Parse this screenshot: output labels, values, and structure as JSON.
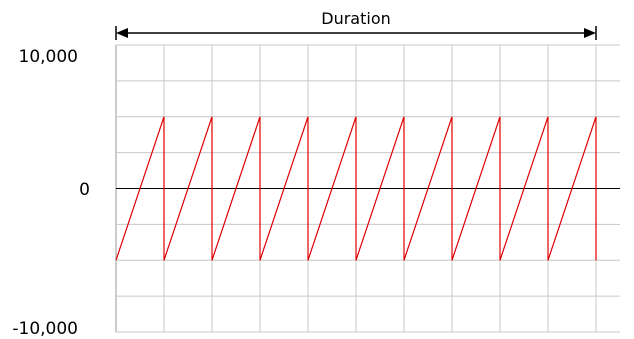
{
  "chart_data": {
    "type": "line",
    "title": "",
    "xlabel": "",
    "ylabel": "",
    "annotation": "Duration",
    "y_ticks": [
      {
        "value": 10000,
        "label": "10,000"
      },
      {
        "value": 0,
        "label": "0"
      },
      {
        "value": -10000,
        "label": "-10,000"
      }
    ],
    "ylim": [
      -10000,
      10000
    ],
    "xlim": [
      0,
      10
    ],
    "grid": true,
    "x_grid_step": 1,
    "y_grid_step": 2500,
    "series": [
      {
        "color": "#e00000",
        "waveform": "sawtooth",
        "amplitude_min": -5000,
        "amplitude_max": 5000,
        "cycles": 10,
        "period": 1
      }
    ],
    "colors": {
      "grid": "#c8c8c8",
      "axis": "#000000",
      "signal": "#e00000"
    }
  }
}
